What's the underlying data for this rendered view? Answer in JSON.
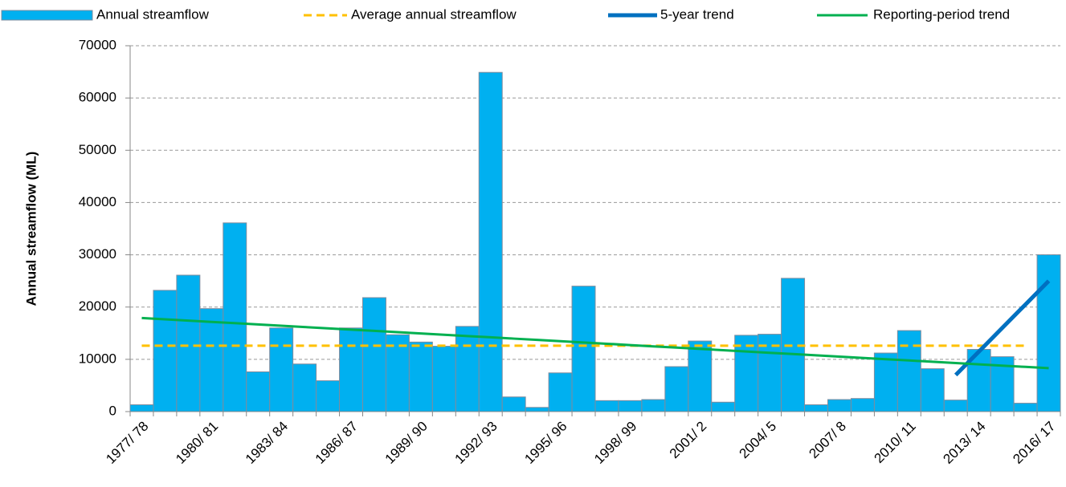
{
  "chart_data": {
    "type": "bar",
    "y_label": "Annual streamflow (ML)",
    "categories": [
      "1977/ 78",
      null,
      null,
      "1980/ 81",
      null,
      null,
      "1983/ 84",
      null,
      null,
      "1986/ 87",
      null,
      null,
      "1989/ 90",
      null,
      null,
      "1992/ 93",
      null,
      null,
      "1995/ 96",
      null,
      null,
      "1998/ 99",
      null,
      null,
      "2001/ 2",
      null,
      null,
      "2004/ 5",
      null,
      null,
      "2007/ 8",
      null,
      null,
      "2010/ 11",
      null,
      null,
      "2013/ 14",
      null,
      null,
      "2016/ 17"
    ],
    "series": [
      {
        "name": "Annual streamflow",
        "color": "#00b0f0",
        "style": "bar",
        "values": [
          1300,
          23200,
          26100,
          19700,
          36100,
          7600,
          16000,
          9100,
          5900,
          16000,
          21800,
          14700,
          13300,
          12500,
          16300,
          64900,
          2800,
          800,
          7400,
          24000,
          2100,
          2100,
          2300,
          8600,
          13500,
          1800,
          14600,
          14800,
          25500,
          1300,
          2300,
          2500,
          11200,
          15500,
          8200,
          2200,
          11900,
          10500,
          1600,
          30000
        ]
      },
      {
        "name": "Average annual streamflow",
        "color": "#ffc000",
        "style": "dashed",
        "values": [
          12600,
          12600,
          12600,
          12600,
          12600,
          12600,
          12600,
          12600,
          12600,
          12600,
          12600,
          12600,
          12600,
          12600,
          12600,
          12600,
          12600,
          12600,
          12600,
          12600,
          12600,
          12600,
          12600,
          12600,
          12600,
          12600,
          12600,
          12600,
          12600,
          12600,
          12600,
          12600,
          12600,
          12600,
          12600,
          12600,
          12600,
          12600,
          12600,
          null
        ]
      },
      {
        "name": "5-year trend",
        "color": "#0070c0",
        "style": "thick",
        "values": [
          null,
          null,
          null,
          null,
          null,
          null,
          null,
          null,
          null,
          null,
          null,
          null,
          null,
          null,
          null,
          null,
          null,
          null,
          null,
          null,
          null,
          null,
          null,
          null,
          null,
          null,
          null,
          null,
          null,
          null,
          null,
          null,
          null,
          null,
          null,
          7000,
          11500,
          16000,
          20500,
          25000
        ]
      },
      {
        "name": "Reporting-period trend",
        "color": "#00b050",
        "style": "line",
        "values": [
          17900,
          17650,
          17410,
          17160,
          16920,
          16670,
          16420,
          16180,
          15930,
          15680,
          15440,
          15190,
          14950,
          14700,
          14450,
          14210,
          13960,
          13720,
          13470,
          13220,
          12980,
          12730,
          12480,
          12240,
          11990,
          11750,
          11500,
          11250,
          11010,
          10760,
          10510,
          10270,
          10020,
          9780,
          9530,
          9280,
          9040,
          8790,
          8550,
          8300
        ]
      }
    ],
    "ylim": [
      0,
      70000
    ],
    "yticks": [
      0,
      10000,
      20000,
      30000,
      40000,
      50000,
      60000,
      70000
    ],
    "grid": true
  }
}
